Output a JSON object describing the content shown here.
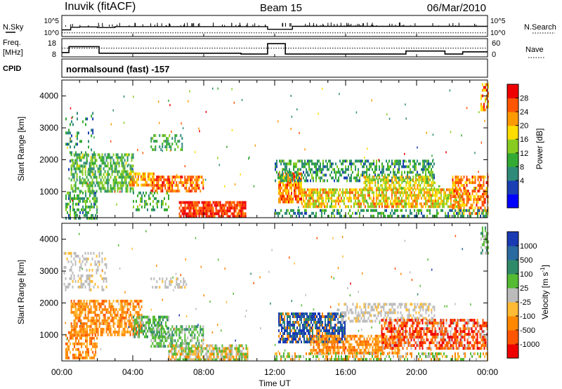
{
  "header": {
    "station": "Inuvik (fitACF)",
    "beam": "Beam 15",
    "date": "06/Mar/2010"
  },
  "nsky_panel": {
    "left_label": "N.Sky",
    "right_label": "N.Search",
    "left_ticks": [
      "10^5",
      "10^0"
    ],
    "right_ticks": [
      "10^5",
      "10^0"
    ]
  },
  "freq_panel": {
    "left_label_1": "Freq.",
    "left_label_2": "[MHz]",
    "right_label": "Nave",
    "left_ticks": [
      "18",
      "8"
    ],
    "right_ticks": [
      "60",
      "0"
    ]
  },
  "cpid_panel": {
    "label": "CPID",
    "mode_text": "normalsound (fast) -157"
  },
  "power_panel": {
    "ylabel": "Slant Range [km]",
    "yticks": [
      "4000",
      "3000",
      "2000",
      "1000"
    ],
    "colorbar_label": "Power [dB]",
    "colorbar_ticks": [
      "28",
      "24",
      "20",
      "16",
      "12",
      "8",
      "4"
    ],
    "colors": [
      "#0000ff",
      "#1a40b4",
      "#2f8a7a",
      "#33aa33",
      "#88cc22",
      "#ffdd00",
      "#ff9900",
      "#ff5500",
      "#ee0000"
    ]
  },
  "velocity_panel": {
    "ylabel": "Slant Range [km]",
    "yticks": [
      "4000",
      "3000",
      "2000",
      "1000"
    ],
    "colorbar_label": "Velocity [m s",
    "colorbar_sup": "-1",
    "colorbar_close": "]",
    "colorbar_ticks": [
      "1000",
      "500",
      "100",
      "25",
      "-25",
      "-100",
      "-500",
      "-1000"
    ],
    "colors": [
      "#1a3ab4",
      "#2a6aa0",
      "#2f8a6a",
      "#55bb33",
      "#bbbbbb",
      "#ffbb33",
      "#ff8800",
      "#ff5500",
      "#ee0000"
    ]
  },
  "xaxis": {
    "ticks": [
      "00:00",
      "04:00",
      "08:00",
      "12:00",
      "16:00",
      "20:00",
      "00:00"
    ],
    "label": "Time UT"
  },
  "chart_data": [
    {
      "type": "line",
      "name": "nsky-nsearch",
      "x_hours": [
        0,
        0.5,
        1,
        2,
        3,
        4,
        5,
        6,
        7,
        8,
        9,
        10,
        11,
        11.6,
        12.1,
        13,
        14,
        15,
        16,
        17,
        18,
        19,
        20,
        21,
        22,
        23,
        24
      ],
      "nsky_log10": [
        1.3,
        2.2,
        2.3,
        2.1,
        2.4,
        2.4,
        2.4,
        2.4,
        2.4,
        2.4,
        2.4,
        2.4,
        2.4,
        1.5,
        1.5,
        2.5,
        2.5,
        2.5,
        2.5,
        2.5,
        2.5,
        2.5,
        2.5,
        2.5,
        2.5,
        2.5,
        2.5
      ],
      "nsearch_log10": [
        0.3,
        0.3,
        0.3,
        0.3,
        0.3,
        0.3,
        0.3,
        0.3,
        0.3,
        0.3,
        0.3,
        0.3,
        0.3,
        0.3,
        0.3,
        0.3,
        0.3,
        0.3,
        0.3,
        0.3,
        0.3,
        0.3,
        0.3,
        0.3,
        0.3,
        0.3,
        0.3
      ],
      "ylim": [
        0,
        5
      ]
    },
    {
      "type": "line",
      "name": "frequency-nave",
      "freq_steps": [
        {
          "from": 0,
          "to": 0.4,
          "mhz": 10
        },
        {
          "from": 0.4,
          "to": 2.1,
          "mhz": 14
        },
        {
          "from": 2.1,
          "to": 10.1,
          "mhz": 9.5
        },
        {
          "from": 10.1,
          "to": 11.6,
          "mhz": 9
        },
        {
          "from": 11.6,
          "to": 12.6,
          "mhz": 16
        },
        {
          "from": 12.6,
          "to": 19.4,
          "mhz": 9
        },
        {
          "from": 19.4,
          "to": 21.6,
          "mhz": 11
        },
        {
          "from": 21.6,
          "to": 22.6,
          "mhz": 9
        },
        {
          "from": 22.6,
          "to": 24,
          "mhz": 10.5
        }
      ],
      "freq_ylim": [
        8,
        18
      ],
      "nave_mean": 30,
      "nave_ylim": [
        0,
        60
      ]
    },
    {
      "type": "heatmap",
      "name": "power",
      "x_range": [
        0,
        24
      ],
      "y_range": [
        180,
        4500
      ],
      "z_label": "Power [dB]",
      "z_range": [
        0,
        32
      ],
      "blobs": [
        {
          "t": [
            0.2,
            1.8
          ],
          "r": [
            1500,
            3500
          ],
          "density": 0.12,
          "level": [
            6,
            14
          ]
        },
        {
          "t": [
            0.2,
            2.0
          ],
          "r": [
            200,
            1000
          ],
          "density": 0.55,
          "level": [
            6,
            18
          ]
        },
        {
          "t": [
            0.5,
            4.0
          ],
          "r": [
            1000,
            2200
          ],
          "density": 0.6,
          "level": [
            8,
            18
          ]
        },
        {
          "t": [
            3.8,
            5.2
          ],
          "r": [
            1200,
            1600
          ],
          "density": 0.75,
          "level": [
            18,
            26
          ]
        },
        {
          "t": [
            5.0,
            8.0
          ],
          "r": [
            1000,
            1500
          ],
          "density": 0.75,
          "level": [
            20,
            30
          ]
        },
        {
          "t": [
            6.6,
            10.4
          ],
          "r": [
            200,
            700
          ],
          "density": 0.8,
          "level": [
            24,
            32
          ]
        },
        {
          "t": [
            5.0,
            6.8
          ],
          "r": [
            2300,
            2800
          ],
          "density": 0.35,
          "level": [
            8,
            16
          ]
        },
        {
          "t": [
            4.0,
            6.0
          ],
          "r": [
            400,
            1000
          ],
          "density": 0.35,
          "level": [
            8,
            16
          ]
        },
        {
          "t": [
            12.2,
            13.5
          ],
          "r": [
            700,
            1600
          ],
          "density": 0.8,
          "level": [
            18,
            30
          ]
        },
        {
          "t": [
            12.0,
            21.0
          ],
          "r": [
            1300,
            2000
          ],
          "density": 0.5,
          "level": [
            6,
            16
          ]
        },
        {
          "t": [
            13.5,
            22.5
          ],
          "r": [
            500,
            1100
          ],
          "density": 0.7,
          "level": [
            14,
            26
          ]
        },
        {
          "t": [
            17.0,
            21.0
          ],
          "r": [
            1100,
            1500
          ],
          "density": 0.6,
          "level": [
            14,
            24
          ]
        },
        {
          "t": [
            22.0,
            24.0
          ],
          "r": [
            300,
            1500
          ],
          "density": 0.6,
          "level": [
            18,
            30
          ]
        },
        {
          "t": [
            12.0,
            24.0
          ],
          "r": [
            200,
            450
          ],
          "density": 0.45,
          "level": [
            6,
            16
          ]
        },
        {
          "t": [
            23.6,
            24.0
          ],
          "r": [
            3600,
            4400
          ],
          "density": 0.5,
          "level": [
            18,
            30
          ]
        }
      ]
    },
    {
      "type": "heatmap",
      "name": "velocity",
      "x_range": [
        0,
        24
      ],
      "y_range": [
        180,
        4500
      ],
      "z_label": "Velocity [m s-1]",
      "z_range": [
        -1000,
        1000
      ],
      "blobs": [
        {
          "t": [
            0.1,
            2.5
          ],
          "r": [
            2400,
            3600
          ],
          "density": 0.3,
          "vel": "gray"
        },
        {
          "t": [
            0.2,
            2.0
          ],
          "r": [
            300,
            1200
          ],
          "density": 0.55,
          "vel": "orange"
        },
        {
          "t": [
            0.5,
            4.5
          ],
          "r": [
            1000,
            2100
          ],
          "density": 0.65,
          "vel": "orange"
        },
        {
          "t": [
            4.0,
            6.0
          ],
          "r": [
            900,
            1600
          ],
          "density": 0.6,
          "vel": "green"
        },
        {
          "t": [
            5.0,
            8.0
          ],
          "r": [
            600,
            1300
          ],
          "density": 0.6,
          "vel": "green"
        },
        {
          "t": [
            6.0,
            10.5
          ],
          "r": [
            200,
            700
          ],
          "density": 0.75,
          "vel": "greenmix"
        },
        {
          "t": [
            5.0,
            7.0
          ],
          "r": [
            2500,
            2800
          ],
          "density": 0.35,
          "vel": "gray"
        },
        {
          "t": [
            12.2,
            16.0
          ],
          "r": [
            800,
            1700
          ],
          "density": 0.75,
          "vel": "blue"
        },
        {
          "t": [
            15.5,
            21.0
          ],
          "r": [
            1400,
            2000
          ],
          "density": 0.45,
          "vel": "gray"
        },
        {
          "t": [
            14.0,
            19.0
          ],
          "r": [
            400,
            1000
          ],
          "density": 0.65,
          "vel": "orange"
        },
        {
          "t": [
            18.0,
            24.0
          ],
          "r": [
            600,
            1500
          ],
          "density": 0.65,
          "vel": "redorange"
        },
        {
          "t": [
            12.0,
            24.0
          ],
          "r": [
            200,
            450
          ],
          "density": 0.4,
          "vel": "greenmix"
        },
        {
          "t": [
            23.6,
            24.0
          ],
          "r": [
            3600,
            4400
          ],
          "density": 0.5,
          "vel": "green"
        }
      ]
    }
  ]
}
